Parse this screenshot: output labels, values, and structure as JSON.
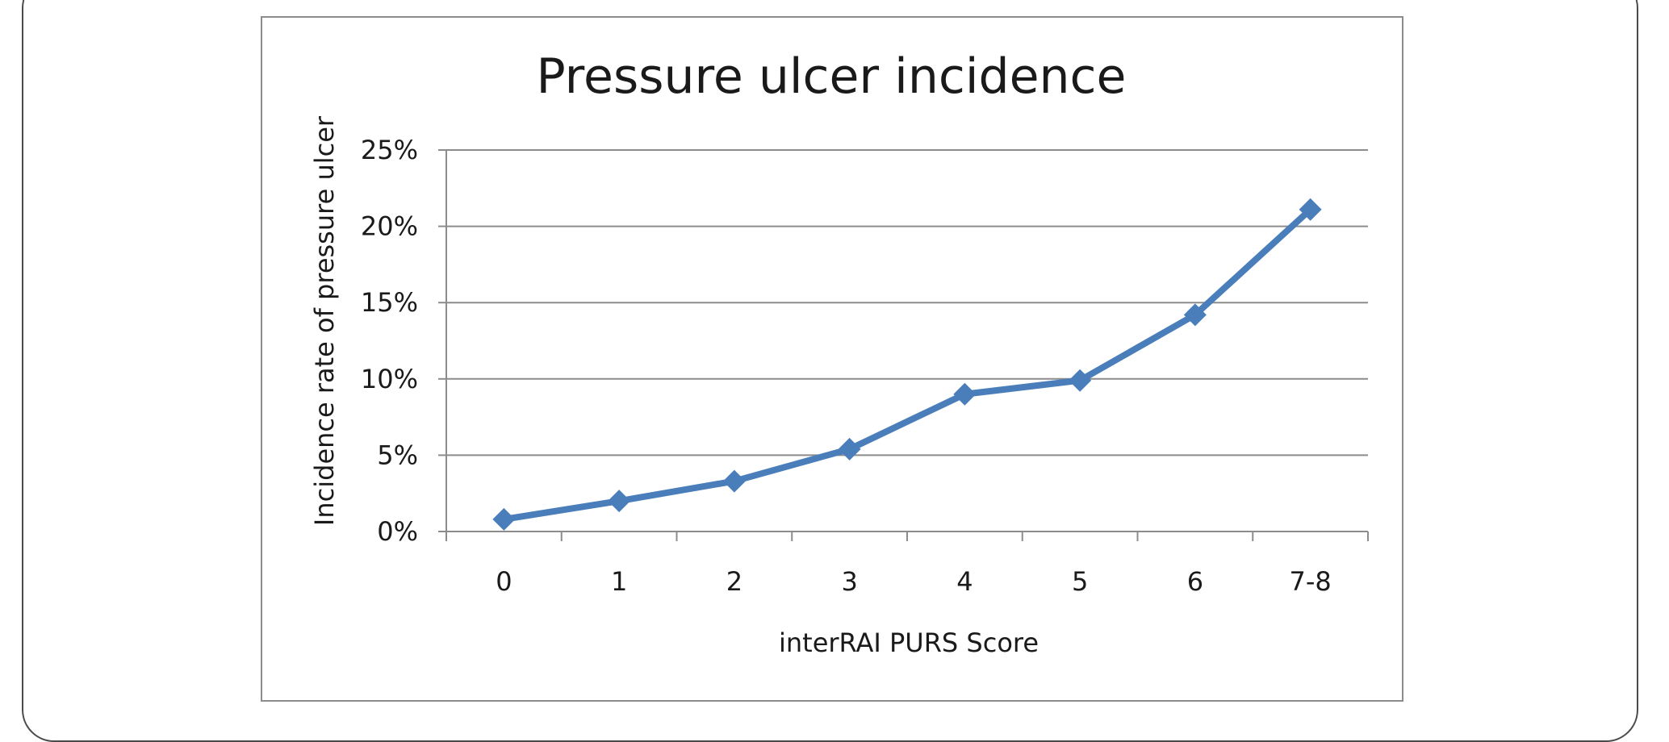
{
  "chart_data": {
    "type": "line",
    "title": "Pressure ulcer incidence",
    "xlabel": "interRAI PURS Score",
    "ylabel": "Incidence rate of pressure ulcer",
    "categories": [
      "0",
      "1",
      "2",
      "3",
      "4",
      "5",
      "6",
      "7-8"
    ],
    "series": [
      {
        "values": [
          0.8,
          2.0,
          3.3,
          5.4,
          9.0,
          9.9,
          14.2,
          21.1
        ]
      }
    ],
    "ylim": [
      0,
      25
    ],
    "yticks": [
      {
        "value": 0,
        "label": "0%"
      },
      {
        "value": 5,
        "label": "5%"
      },
      {
        "value": 10,
        "label": "10%"
      },
      {
        "value": 15,
        "label": "15%"
      },
      {
        "value": 20,
        "label": "20%"
      },
      {
        "value": 25,
        "label": "25%"
      }
    ],
    "grid": true,
    "legend": "none",
    "line_color": "#4a7ebb",
    "grid_color": "#8c8c8c"
  }
}
